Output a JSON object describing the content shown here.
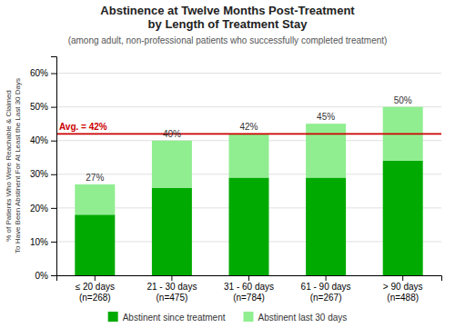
{
  "chart_data": {
    "type": "bar",
    "stacked": true,
    "title": "Abstinence at Twelve Months Post-Treatment\nby Length of Treatment Stay",
    "subtitle": "(among adult, non-professional patients who successfully completed treatment)",
    "ylabel": "% of Patients Who Were Reachable & Claimed\nTo Have Been Abstinent For At Least the Last 30 Days",
    "categories": [
      "≤ 20 days\n(n=268)",
      "21 - 30 days\n(n=475)",
      "31 - 60 days\n(n=784)",
      "61 - 90 days\n(n=267)",
      "> 90 days\n(n=488)"
    ],
    "series": [
      {
        "name": "Abstinent since treatment",
        "color": "#00AA00",
        "values": [
          18,
          26,
          29,
          29,
          34
        ]
      },
      {
        "name": "Abstinent last 30 days",
        "color": "#90EE90",
        "values": [
          9,
          14,
          13,
          16,
          16
        ]
      }
    ],
    "totals": {
      "values": [
        27,
        40,
        42,
        45,
        50
      ],
      "value_labels": [
        "27%",
        "40%",
        "42%",
        "45%",
        "50%"
      ]
    },
    "avg_line": {
      "value": 42,
      "label": "Avg. = 42%",
      "color": "#CC0000"
    },
    "ylim": [
      0,
      65
    ],
    "yticks": [
      {
        "value": 0,
        "label": "0%"
      },
      {
        "value": 10,
        "label": "10%"
      },
      {
        "value": 20,
        "label": "20%"
      },
      {
        "value": 30,
        "label": "30%"
      },
      {
        "value": 40,
        "label": "40%"
      },
      {
        "value": 50,
        "label": "50%"
      },
      {
        "value": 60,
        "label": "60%"
      }
    ],
    "grid": true,
    "legend": "bottom"
  }
}
